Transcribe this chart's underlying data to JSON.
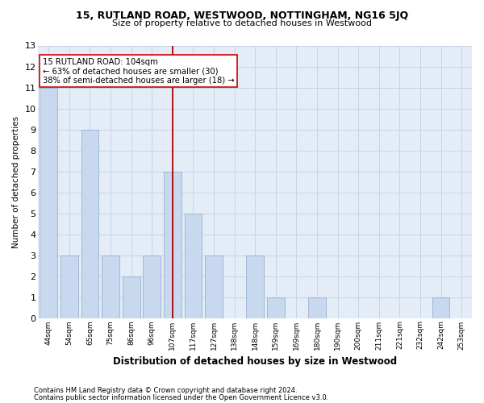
{
  "title": "15, RUTLAND ROAD, WESTWOOD, NOTTINGHAM, NG16 5JQ",
  "subtitle": "Size of property relative to detached houses in Westwood",
  "xlabel": "Distribution of detached houses by size in Westwood",
  "ylabel": "Number of detached properties",
  "categories": [
    "44sqm",
    "54sqm",
    "65sqm",
    "75sqm",
    "86sqm",
    "96sqm",
    "107sqm",
    "117sqm",
    "127sqm",
    "138sqm",
    "148sqm",
    "159sqm",
    "169sqm",
    "180sqm",
    "190sqm",
    "200sqm",
    "211sqm",
    "221sqm",
    "232sqm",
    "242sqm",
    "253sqm"
  ],
  "values": [
    11,
    3,
    9,
    3,
    2,
    3,
    7,
    5,
    3,
    0,
    3,
    1,
    0,
    1,
    0,
    0,
    0,
    0,
    0,
    1,
    0
  ],
  "bar_color": "#c8d8ee",
  "bar_edge_color": "#9ab0cc",
  "highlight_index": 6,
  "highlight_color_line": "#aa0000",
  "annotation_text": "15 RUTLAND ROAD: 104sqm\n← 63% of detached houses are smaller (30)\n38% of semi-detached houses are larger (18) →",
  "annotation_box_color": "#ffffff",
  "annotation_box_edge": "#cc0000",
  "grid_color": "#c8d4e4",
  "bg_color": "#e4ecf8",
  "ylim": [
    0,
    13
  ],
  "yticks": [
    0,
    1,
    2,
    3,
    4,
    5,
    6,
    7,
    8,
    9,
    10,
    11,
    12,
    13
  ],
  "footer1": "Contains HM Land Registry data © Crown copyright and database right 2024.",
  "footer2": "Contains public sector information licensed under the Open Government Licence v3.0."
}
